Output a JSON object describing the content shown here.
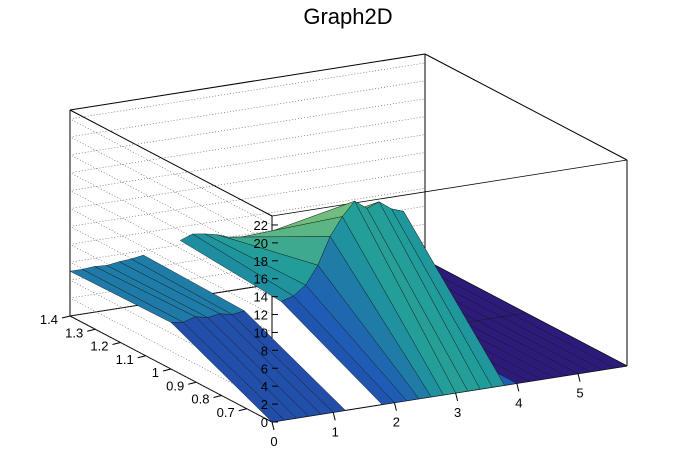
{
  "chart_data": {
    "type": "surface3d",
    "title": "Graph2D",
    "xlabel": "",
    "ylabel": "",
    "zlabel": "",
    "xlim": [
      0,
      5.8
    ],
    "ylim": [
      0.6,
      1.4
    ],
    "zlim": [
      0,
      23
    ],
    "x_ticks": [
      "0",
      "1",
      "2",
      "3",
      "4",
      "5"
    ],
    "y_ticks": [
      "0.7",
      "0.8",
      "0.9",
      "1",
      "1.1",
      "1.2",
      "1.3",
      "1.4"
    ],
    "z_ticks": [
      "0",
      "2",
      "4",
      "6",
      "8",
      "10",
      "12",
      "14",
      "16",
      "18",
      "20",
      "22"
    ],
    "grid": true,
    "colormap": "viridis-like (dark blue to yellow)",
    "x_columns": [
      0.0,
      0.2,
      0.4,
      0.6,
      0.8,
      1.0,
      1.2,
      1.4,
      1.6,
      1.8,
      2.0,
      2.2,
      2.4,
      2.6,
      2.8,
      3.0,
      3.2,
      3.4,
      3.6,
      3.8,
      4.0,
      4.2,
      4.4,
      4.6,
      4.8,
      5.0,
      5.2,
      5.4,
      5.6,
      5.8
    ],
    "z_front_edge_y_0_6": [
      0.0,
      0.0,
      0.0,
      0.0,
      0.0,
      0.0,
      0.0,
      0.0,
      0.0,
      0.0,
      0.0,
      0.0,
      0.0,
      0.0,
      0.0,
      0.0,
      0.0,
      0.0,
      0.0,
      0.0,
      0.0,
      0.0,
      0.0,
      0.0,
      0.0,
      0.0,
      0.0,
      0.0,
      0.0,
      0.0
    ],
    "z_crest_y_1_0": [
      5.2,
      5.0,
      5.4,
      5.1,
      5.3,
      5.0,
      5.2,
      5.1,
      5.3,
      5.6,
      6.0,
      7.0,
      9.0,
      12.0,
      14.0,
      15.5,
      14.5,
      15.0,
      14.0,
      13.5,
      0.0,
      0.0,
      0.0,
      0.0,
      0.0,
      0.0,
      0.0,
      0.0,
      0.0,
      0.0
    ],
    "z_back_edge_y_1_4": [
      5.0,
      5.0,
      5.1,
      5.0,
      5.2,
      5.3,
      5.5,
      5.8,
      6.0,
      6.5,
      7.0,
      6.8,
      6.5,
      6.0,
      5.8,
      5.5,
      5.3,
      5.2,
      5.0,
      5.0,
      0.0,
      0.0,
      0.0,
      0.0,
      0.0,
      0.0,
      0.0,
      0.0,
      0.0,
      0.0
    ],
    "gap_x_ranges": [
      [
        0.0,
        0.0
      ],
      [
        1.1,
        1.9
      ]
    ]
  }
}
